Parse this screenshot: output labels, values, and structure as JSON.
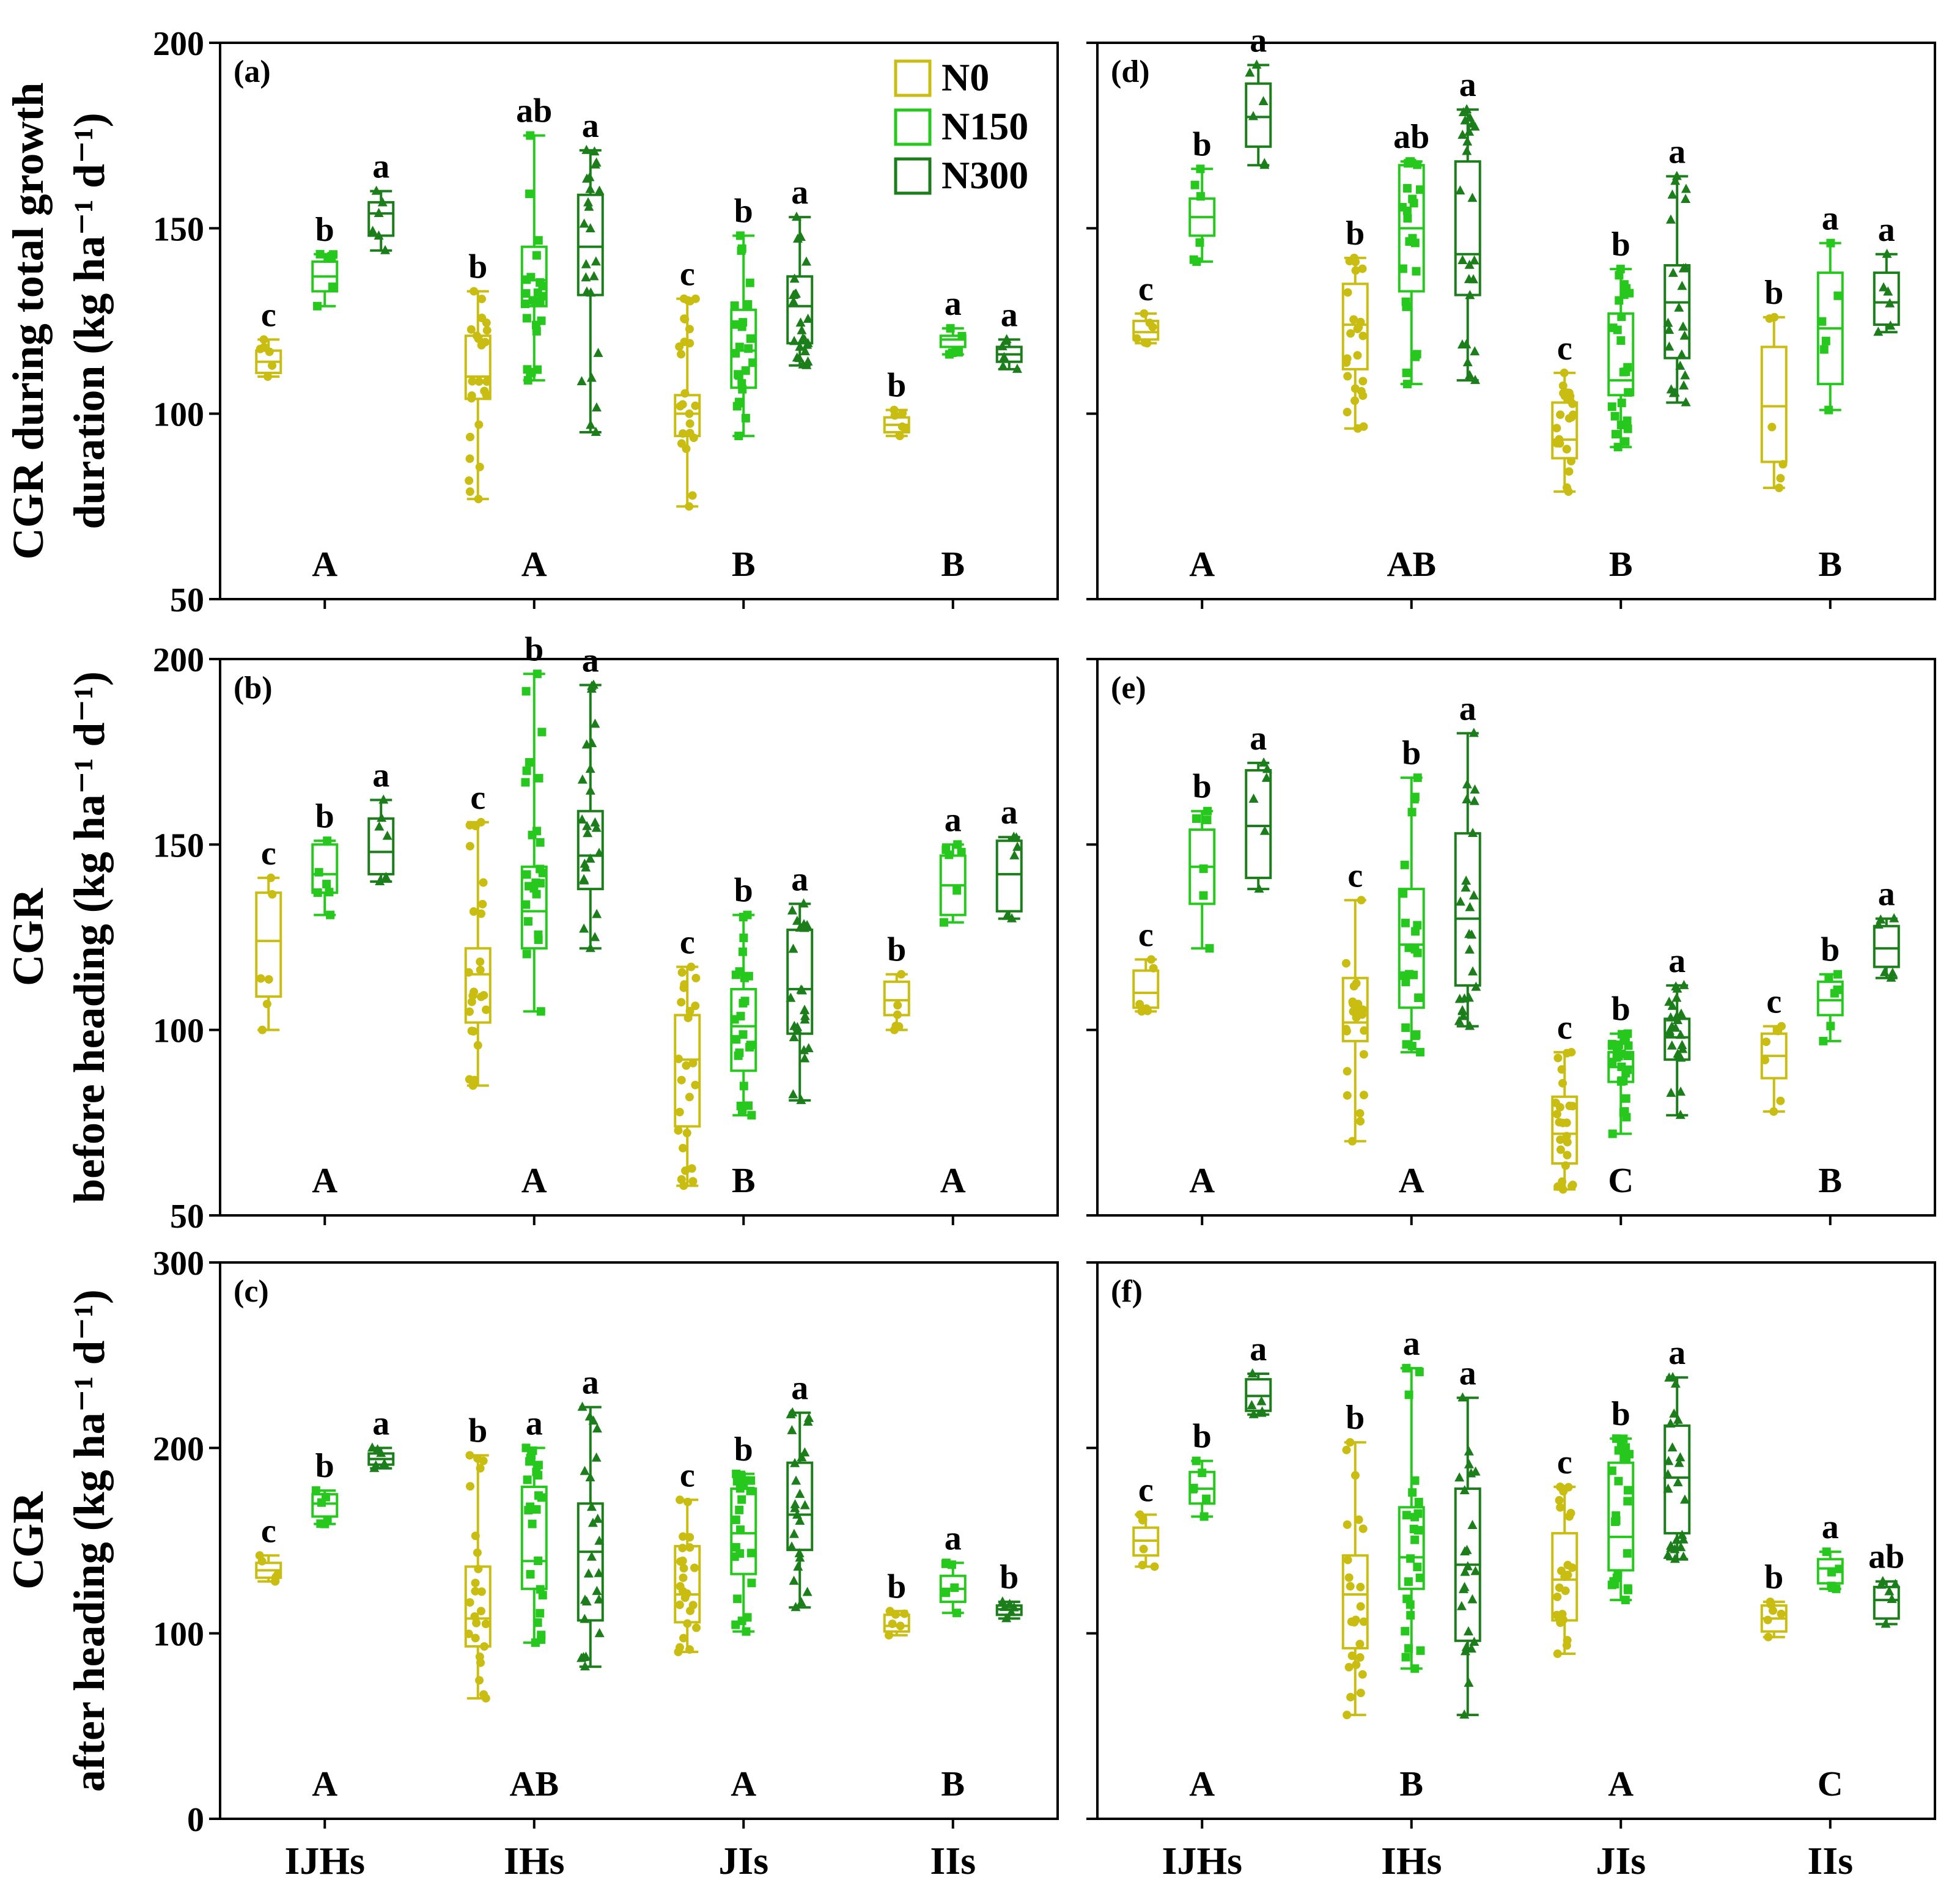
{
  "colors": {
    "N0": "#c8bd10",
    "N150": "#27c81e",
    "N300": "#1b7e1b",
    "axis": "#000000"
  },
  "legend": [
    {
      "key": "N0",
      "label": "N0",
      "marker": "circle"
    },
    {
      "key": "N150",
      "label": "N150",
      "marker": "square"
    },
    {
      "key": "N300",
      "label": "N300",
      "marker": "triangle"
    }
  ],
  "y_labels": [
    [
      "CGR during total growth",
      "duration (kg ha⁻¹ d⁻¹)"
    ],
    [
      "CGR",
      "before heading (kg ha⁻¹ d⁻¹)"
    ],
    [
      "CGR",
      "after heading (kg ha⁻¹ d⁻¹)"
    ]
  ],
  "chart_data": [
    {
      "type": "box",
      "panel": "(a)",
      "row": 0,
      "col": 0,
      "categories": [
        "IJHs",
        "IHs",
        "JIs",
        "IIs"
      ],
      "ylim": [
        50,
        200
      ],
      "yticks": [
        50,
        100,
        150,
        200
      ],
      "show_ytick_labels": true,
      "show_xtick_labels": false,
      "group_letters": [
        "A",
        "A",
        "B",
        "B"
      ],
      "boxes": [
        [
          {
            "series": "N0",
            "min": 110,
            "q1": 111,
            "median": 114,
            "q3": 117,
            "max": 120,
            "letter": "c",
            "n": 6
          },
          {
            "series": "N150",
            "min": 129,
            "q1": 133,
            "median": 137,
            "q3": 141,
            "max": 143,
            "letter": "b",
            "n": 6
          },
          {
            "series": "N300",
            "min": 144,
            "q1": 148,
            "median": 154,
            "q3": 157,
            "max": 160,
            "letter": "a",
            "n": 6
          }
        ],
        [
          {
            "series": "N0",
            "min": 77,
            "q1": 104,
            "median": 110,
            "q3": 121,
            "max": 133,
            "letter": "b",
            "n": 24
          },
          {
            "series": "N150",
            "min": 109,
            "q1": 129,
            "median": 136,
            "q3": 145,
            "max": 175,
            "letter": "ab",
            "n": 24
          },
          {
            "series": "N300",
            "min": 95,
            "q1": 132,
            "median": 145,
            "q3": 159,
            "max": 171,
            "letter": "a",
            "n": 24
          }
        ],
        [
          {
            "series": "N0",
            "min": 75,
            "q1": 94,
            "median": 100,
            "q3": 105,
            "max": 131,
            "letter": "c",
            "n": 24
          },
          {
            "series": "N150",
            "min": 94,
            "q1": 107,
            "median": 117,
            "q3": 128,
            "max": 148,
            "letter": "b",
            "n": 24
          },
          {
            "series": "N300",
            "min": 113,
            "q1": 119,
            "median": 129,
            "q3": 137,
            "max": 153,
            "letter": "a",
            "n": 24
          }
        ],
        [
          {
            "series": "N0",
            "min": 94,
            "q1": 95,
            "median": 97,
            "q3": 99,
            "max": 101,
            "letter": "b",
            "n": 6
          },
          {
            "series": "N150",
            "min": 116,
            "q1": 118,
            "median": 120,
            "q3": 121,
            "max": 123,
            "letter": "a",
            "n": 6
          },
          {
            "series": "N300",
            "min": 112,
            "q1": 114,
            "median": 116,
            "q3": 118,
            "max": 120,
            "letter": "a",
            "n": 6
          }
        ]
      ]
    },
    {
      "type": "box",
      "panel": "(b)",
      "row": 1,
      "col": 0,
      "categories": [
        "IJHs",
        "IHs",
        "JIs",
        "IIs"
      ],
      "ylim": [
        50,
        200
      ],
      "yticks": [
        50,
        100,
        150,
        200
      ],
      "show_ytick_labels": true,
      "show_xtick_labels": false,
      "group_letters": [
        "A",
        "A",
        "B",
        "A"
      ],
      "boxes": [
        [
          {
            "series": "N0",
            "min": 100,
            "q1": 109,
            "median": 124,
            "q3": 137,
            "max": 141,
            "letter": "c",
            "n": 6
          },
          {
            "series": "N150",
            "min": 131,
            "q1": 137,
            "median": 142,
            "q3": 150,
            "max": 151,
            "letter": "b",
            "n": 6
          },
          {
            "series": "N300",
            "min": 140,
            "q1": 142,
            "median": 148,
            "q3": 157,
            "max": 162,
            "letter": "a",
            "n": 6
          }
        ],
        [
          {
            "series": "N0",
            "min": 85,
            "q1": 102,
            "median": 115,
            "q3": 122,
            "max": 156,
            "letter": "c",
            "n": 24
          },
          {
            "series": "N150",
            "min": 105,
            "q1": 122,
            "median": 132,
            "q3": 144,
            "max": 196,
            "letter": "b",
            "n": 24
          },
          {
            "series": "N300",
            "min": 122,
            "q1": 138,
            "median": 147,
            "q3": 159,
            "max": 193,
            "letter": "a",
            "n": 24
          }
        ],
        [
          {
            "series": "N0",
            "min": 58,
            "q1": 74,
            "median": 92,
            "q3": 104,
            "max": 117,
            "letter": "c",
            "n": 24
          },
          {
            "series": "N150",
            "min": 77,
            "q1": 89,
            "median": 101,
            "q3": 111,
            "max": 131,
            "letter": "b",
            "n": 24
          },
          {
            "series": "N300",
            "min": 81,
            "q1": 99,
            "median": 111,
            "q3": 127,
            "max": 134,
            "letter": "a",
            "n": 24
          }
        ],
        [
          {
            "series": "N0",
            "min": 100,
            "q1": 104,
            "median": 108,
            "q3": 113,
            "max": 115,
            "letter": "b",
            "n": 6
          },
          {
            "series": "N150",
            "min": 129,
            "q1": 131,
            "median": 139,
            "q3": 147,
            "max": 150,
            "letter": "a",
            "n": 6
          },
          {
            "series": "N300",
            "min": 130,
            "q1": 132,
            "median": 142,
            "q3": 151,
            "max": 152,
            "letter": "a",
            "n": 6
          }
        ]
      ]
    },
    {
      "type": "box",
      "panel": "(c)",
      "row": 2,
      "col": 0,
      "categories": [
        "IJHs",
        "IHs",
        "JIs",
        "IIs"
      ],
      "ylim": [
        0,
        300
      ],
      "yticks": [
        0,
        100,
        200,
        300
      ],
      "show_ytick_labels": true,
      "show_xtick_labels": true,
      "group_letters": [
        "A",
        "AB",
        "A",
        "B"
      ],
      "boxes": [
        [
          {
            "series": "N0",
            "min": 128,
            "q1": 130,
            "median": 134,
            "q3": 138,
            "max": 142,
            "letter": "c",
            "n": 6
          },
          {
            "series": "N150",
            "min": 159,
            "q1": 163,
            "median": 170,
            "q3": 175,
            "max": 177,
            "letter": "b",
            "n": 6
          },
          {
            "series": "N300",
            "min": 189,
            "q1": 191,
            "median": 194,
            "q3": 197,
            "max": 200,
            "letter": "a",
            "n": 6
          }
        ],
        [
          {
            "series": "N0",
            "min": 65,
            "q1": 93,
            "median": 108,
            "q3": 136,
            "max": 196,
            "letter": "b",
            "n": 24
          },
          {
            "series": "N150",
            "min": 95,
            "q1": 124,
            "median": 139,
            "q3": 179,
            "max": 200,
            "letter": "a",
            "n": 24
          },
          {
            "series": "N300",
            "min": 82,
            "q1": 107,
            "median": 144,
            "q3": 170,
            "max": 222,
            "letter": "a",
            "n": 24
          }
        ],
        [
          {
            "series": "N0",
            "min": 90,
            "q1": 106,
            "median": 121,
            "q3": 147,
            "max": 172,
            "letter": "c",
            "n": 24
          },
          {
            "series": "N150",
            "min": 101,
            "q1": 132,
            "median": 154,
            "q3": 178,
            "max": 186,
            "letter": "b",
            "n": 24
          },
          {
            "series": "N300",
            "min": 114,
            "q1": 145,
            "median": 164,
            "q3": 192,
            "max": 219,
            "letter": "a",
            "n": 24
          }
        ],
        [
          {
            "series": "N0",
            "min": 99,
            "q1": 101,
            "median": 104,
            "q3": 110,
            "max": 112,
            "letter": "b",
            "n": 6
          },
          {
            "series": "N150",
            "min": 111,
            "q1": 117,
            "median": 124,
            "q3": 131,
            "max": 138,
            "letter": "a",
            "n": 6
          },
          {
            "series": "N300",
            "min": 108,
            "q1": 110,
            "median": 113,
            "q3": 115,
            "max": 117,
            "letter": "b",
            "n": 6
          }
        ]
      ]
    },
    {
      "type": "box",
      "panel": "(d)",
      "row": 0,
      "col": 1,
      "categories": [
        "IJHs",
        "IHs",
        "JIs",
        "IIs"
      ],
      "ylim": [
        50,
        200
      ],
      "yticks": [
        50,
        100,
        150,
        200
      ],
      "show_ytick_labels": false,
      "show_xtick_labels": false,
      "group_letters": [
        "A",
        "AB",
        "B",
        "B"
      ],
      "boxes": [
        [
          {
            "series": "N0",
            "min": 119,
            "q1": 120,
            "median": 122,
            "q3": 125,
            "max": 127,
            "letter": "c",
            "n": 6
          },
          {
            "series": "N150",
            "min": 141,
            "q1": 148,
            "median": 153,
            "q3": 158,
            "max": 166,
            "letter": "b",
            "n": 6
          },
          {
            "series": "N300",
            "min": 167,
            "q1": 172,
            "median": 180,
            "q3": 189,
            "max": 194,
            "letter": "a",
            "n": 6
          }
        ],
        [
          {
            "series": "N0",
            "min": 96,
            "q1": 112,
            "median": 124,
            "q3": 135,
            "max": 142,
            "letter": "b",
            "n": 24
          },
          {
            "series": "N150",
            "min": 108,
            "q1": 133,
            "median": 150,
            "q3": 167,
            "max": 168,
            "letter": "ab",
            "n": 24
          },
          {
            "series": "N300",
            "min": 109,
            "q1": 132,
            "median": 143,
            "q3": 168,
            "max": 182,
            "letter": "a",
            "n": 24
          }
        ],
        [
          {
            "series": "N0",
            "min": 79,
            "q1": 88,
            "median": 93,
            "q3": 103,
            "max": 111,
            "letter": "c",
            "n": 24
          },
          {
            "series": "N150",
            "min": 91,
            "q1": 105,
            "median": 109,
            "q3": 127,
            "max": 139,
            "letter": "b",
            "n": 24
          },
          {
            "series": "N300",
            "min": 103,
            "q1": 115,
            "median": 130,
            "q3": 140,
            "max": 164,
            "letter": "a",
            "n": 24
          }
        ],
        [
          {
            "series": "N0",
            "min": 80,
            "q1": 87,
            "median": 102,
            "q3": 118,
            "max": 126,
            "letter": "b",
            "n": 6
          },
          {
            "series": "N150",
            "min": 101,
            "q1": 108,
            "median": 123,
            "q3": 138,
            "max": 146,
            "letter": "a",
            "n": 6
          },
          {
            "series": "N300",
            "min": 122,
            "q1": 124,
            "median": 130,
            "q3": 138,
            "max": 143,
            "letter": "a",
            "n": 6
          }
        ]
      ]
    },
    {
      "type": "box",
      "panel": "(e)",
      "row": 1,
      "col": 1,
      "categories": [
        "IJHs",
        "IHs",
        "JIs",
        "IIs"
      ],
      "ylim": [
        50,
        200
      ],
      "yticks": [
        50,
        100,
        150,
        200
      ],
      "show_ytick_labels": false,
      "show_xtick_labels": false,
      "group_letters": [
        "A",
        "A",
        "C",
        "B"
      ],
      "boxes": [
        [
          {
            "series": "N0",
            "min": 105,
            "q1": 106,
            "median": 110,
            "q3": 116,
            "max": 119,
            "letter": "c",
            "n": 6
          },
          {
            "series": "N150",
            "min": 122,
            "q1": 134,
            "median": 144,
            "q3": 154,
            "max": 159,
            "letter": "b",
            "n": 6
          },
          {
            "series": "N300",
            "min": 138,
            "q1": 141,
            "median": 155,
            "q3": 170,
            "max": 172,
            "letter": "a",
            "n": 6
          }
        ],
        [
          {
            "series": "N0",
            "min": 70,
            "q1": 97,
            "median": 102,
            "q3": 114,
            "max": 135,
            "letter": "c",
            "n": 24
          },
          {
            "series": "N150",
            "min": 94,
            "q1": 106,
            "median": 123,
            "q3": 138,
            "max": 168,
            "letter": "b",
            "n": 24
          },
          {
            "series": "N300",
            "min": 101,
            "q1": 112,
            "median": 130,
            "q3": 153,
            "max": 180,
            "letter": "a",
            "n": 24
          }
        ],
        [
          {
            "series": "N0",
            "min": 57,
            "q1": 64,
            "median": 72,
            "q3": 82,
            "max": 94,
            "letter": "c",
            "n": 24
          },
          {
            "series": "N150",
            "min": 72,
            "q1": 86,
            "median": 90,
            "q3": 94,
            "max": 99,
            "letter": "b",
            "n": 24
          },
          {
            "series": "N300",
            "min": 77,
            "q1": 92,
            "median": 98,
            "q3": 103,
            "max": 112,
            "letter": "a",
            "n": 24
          }
        ],
        [
          {
            "series": "N0",
            "min": 78,
            "q1": 87,
            "median": 93,
            "q3": 99,
            "max": 101,
            "letter": "c",
            "n": 6
          },
          {
            "series": "N150",
            "min": 97,
            "q1": 104,
            "median": 108,
            "q3": 113,
            "max": 115,
            "letter": "b",
            "n": 6
          },
          {
            "series": "N300",
            "min": 114,
            "q1": 117,
            "median": 122,
            "q3": 128,
            "max": 130,
            "letter": "a",
            "n": 6
          }
        ]
      ]
    },
    {
      "type": "box",
      "panel": "(f)",
      "row": 2,
      "col": 1,
      "categories": [
        "IJHs",
        "IHs",
        "JIs",
        "IIs"
      ],
      "ylim": [
        0,
        300
      ],
      "yticks": [
        0,
        100,
        200,
        300
      ],
      "show_ytick_labels": false,
      "show_xtick_labels": true,
      "group_letters": [
        "A",
        "B",
        "A",
        "C"
      ],
      "boxes": [
        [
          {
            "series": "N0",
            "min": 136,
            "q1": 142,
            "median": 150,
            "q3": 157,
            "max": 164,
            "letter": "c",
            "n": 6
          },
          {
            "series": "N150",
            "min": 163,
            "q1": 170,
            "median": 178,
            "q3": 187,
            "max": 193,
            "letter": "b",
            "n": 6
          },
          {
            "series": "N300",
            "min": 218,
            "q1": 220,
            "median": 228,
            "q3": 237,
            "max": 240,
            "letter": "a",
            "n": 6
          }
        ],
        [
          {
            "series": "N0",
            "min": 56,
            "q1": 92,
            "median": 121,
            "q3": 142,
            "max": 203,
            "letter": "b",
            "n": 24
          },
          {
            "series": "N150",
            "min": 81,
            "q1": 124,
            "median": 141,
            "q3": 168,
            "max": 243,
            "letter": "a",
            "n": 24
          },
          {
            "series": "N300",
            "min": 56,
            "q1": 96,
            "median": 137,
            "q3": 178,
            "max": 227,
            "letter": "a",
            "n": 24
          }
        ],
        [
          {
            "series": "N0",
            "min": 89,
            "q1": 107,
            "median": 129,
            "q3": 154,
            "max": 179,
            "letter": "c",
            "n": 24
          },
          {
            "series": "N150",
            "min": 118,
            "q1": 134,
            "median": 152,
            "q3": 192,
            "max": 205,
            "letter": "b",
            "n": 24
          },
          {
            "series": "N300",
            "min": 140,
            "q1": 154,
            "median": 184,
            "q3": 212,
            "max": 238,
            "letter": "a",
            "n": 24
          }
        ],
        [
          {
            "series": "N0",
            "min": 98,
            "q1": 101,
            "median": 108,
            "q3": 115,
            "max": 117,
            "letter": "b",
            "n": 6
          },
          {
            "series": "N150",
            "min": 124,
            "q1": 127,
            "median": 135,
            "q3": 140,
            "max": 144,
            "letter": "a",
            "n": 6
          },
          {
            "series": "N300",
            "min": 105,
            "q1": 108,
            "median": 118,
            "q3": 125,
            "max": 128,
            "letter": "ab",
            "n": 6
          }
        ]
      ]
    }
  ]
}
